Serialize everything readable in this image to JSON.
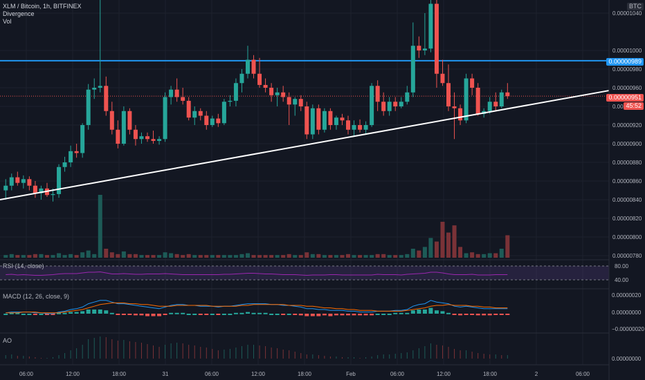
{
  "header": {
    "symbol": "XLM / Bitcoin, 1h, BITFINEX",
    "indicator_1": "Divergence",
    "indicator_2": "Vol"
  },
  "price_axis": {
    "currency": "BTC",
    "ticks": [
      "0.00001040",
      "0.00001000",
      "0.00000980",
      "0.00000960",
      "0.00000940",
      "0.00000920",
      "0.00000900",
      "0.00000880",
      "0.00000860",
      "0.00000840",
      "0.00000820",
      "0.00000800",
      "0.00000780"
    ],
    "tick_values": [
      1.04e-05,
      1e-05,
      9.8e-06,
      9.6e-06,
      9.4e-06,
      9.2e-06,
      9e-06,
      8.8e-06,
      8.6e-06,
      8.4e-06,
      8.2e-06,
      8e-06,
      7.8e-06
    ],
    "horizontal_line_label": "0.00000989",
    "horizontal_line_value": 9.89e-06,
    "last_price_label": "0.00000951",
    "last_price_value": 9.51e-06,
    "countdown": "45:52"
  },
  "rsi": {
    "label": "RSI (14, close)",
    "ticks": [
      "80.00",
      "40.00"
    ]
  },
  "macd": {
    "label": "MACD (12, 26, close, 9)",
    "ticks": [
      "0.00000020",
      "0.00000000",
      "−0.00000020"
    ]
  },
  "ao": {
    "label": "AO",
    "ticks": [
      "0.00000000"
    ]
  },
  "time_axis": {
    "labels": [
      "06:00",
      "12:00",
      "18:00",
      "31",
      "06:00",
      "12:00",
      "18:00",
      "Feb",
      "06:00",
      "12:00",
      "18:00",
      "2",
      "06:00"
    ]
  },
  "colors": {
    "up": "#26a69a",
    "down": "#ef5350",
    "hline": "#2196f3",
    "trendline": "#ffffff",
    "rsi": "#9c27b0",
    "macd": "#2196f3",
    "signal": "#ff6d00",
    "background": "#131722",
    "text": "#b2b5be"
  },
  "chart_data": {
    "type": "candlestick",
    "interval": "1h",
    "candles": [
      {
        "o": 8.5,
        "h": 8.62,
        "l": 8.4,
        "c": 8.55
      },
      {
        "o": 8.55,
        "h": 8.68,
        "l": 8.5,
        "c": 8.64
      },
      {
        "o": 8.64,
        "h": 8.7,
        "l": 8.55,
        "c": 8.58
      },
      {
        "o": 8.58,
        "h": 8.66,
        "l": 8.52,
        "c": 8.62
      },
      {
        "o": 8.62,
        "h": 8.65,
        "l": 8.5,
        "c": 8.55
      },
      {
        "o": 8.55,
        "h": 8.6,
        "l": 8.42,
        "c": 8.47
      },
      {
        "o": 8.47,
        "h": 8.55,
        "l": 8.4,
        "c": 8.52
      },
      {
        "o": 8.52,
        "h": 8.58,
        "l": 8.43,
        "c": 8.45
      },
      {
        "o": 8.45,
        "h": 8.52,
        "l": 8.38,
        "c": 8.46
      },
      {
        "o": 8.46,
        "h": 8.78,
        "l": 8.42,
        "c": 8.75
      },
      {
        "o": 8.75,
        "h": 8.86,
        "l": 8.7,
        "c": 8.8
      },
      {
        "o": 8.8,
        "h": 8.98,
        "l": 8.75,
        "c": 8.92
      },
      {
        "o": 8.92,
        "h": 9.0,
        "l": 8.85,
        "c": 8.9
      },
      {
        "o": 8.9,
        "h": 9.22,
        "l": 8.85,
        "c": 9.2
      },
      {
        "o": 9.2,
        "h": 9.64,
        "l": 9.15,
        "c": 9.58
      },
      {
        "o": 9.58,
        "h": 9.7,
        "l": 9.48,
        "c": 9.6
      },
      {
        "o": 9.6,
        "h": 10.6,
        "l": 9.55,
        "c": 9.62
      },
      {
        "o": 9.62,
        "h": 9.72,
        "l": 9.3,
        "c": 9.35
      },
      {
        "o": 9.35,
        "h": 9.45,
        "l": 9.1,
        "c": 9.15
      },
      {
        "o": 9.15,
        "h": 9.25,
        "l": 8.95,
        "c": 9.0
      },
      {
        "o": 9.0,
        "h": 9.4,
        "l": 8.98,
        "c": 9.35
      },
      {
        "o": 9.35,
        "h": 9.38,
        "l": 9.1,
        "c": 9.15
      },
      {
        "o": 9.15,
        "h": 9.2,
        "l": 8.98,
        "c": 9.05
      },
      {
        "o": 9.05,
        "h": 9.12,
        "l": 9.0,
        "c": 9.08
      },
      {
        "o": 9.08,
        "h": 9.12,
        "l": 9.02,
        "c": 9.05
      },
      {
        "o": 9.05,
        "h": 9.14,
        "l": 9.0,
        "c": 9.03
      },
      {
        "o": 9.03,
        "h": 9.08,
        "l": 8.99,
        "c": 9.05
      },
      {
        "o": 9.05,
        "h": 9.55,
        "l": 9.02,
        "c": 9.5
      },
      {
        "o": 9.5,
        "h": 9.62,
        "l": 9.42,
        "c": 9.58
      },
      {
        "o": 9.58,
        "h": 9.7,
        "l": 9.45,
        "c": 9.5
      },
      {
        "o": 9.5,
        "h": 9.6,
        "l": 9.42,
        "c": 9.46
      },
      {
        "o": 9.46,
        "h": 9.5,
        "l": 9.25,
        "c": 9.28
      },
      {
        "o": 9.28,
        "h": 9.4,
        "l": 9.2,
        "c": 9.35
      },
      {
        "o": 9.35,
        "h": 9.38,
        "l": 9.25,
        "c": 9.3
      },
      {
        "o": 9.3,
        "h": 9.35,
        "l": 9.15,
        "c": 9.2
      },
      {
        "o": 9.2,
        "h": 9.3,
        "l": 9.18,
        "c": 9.27
      },
      {
        "o": 9.27,
        "h": 9.32,
        "l": 9.18,
        "c": 9.22
      },
      {
        "o": 9.22,
        "h": 9.48,
        "l": 9.2,
        "c": 9.45
      },
      {
        "o": 9.45,
        "h": 9.52,
        "l": 9.4,
        "c": 9.46
      },
      {
        "o": 9.46,
        "h": 9.7,
        "l": 9.4,
        "c": 9.65
      },
      {
        "o": 9.65,
        "h": 9.8,
        "l": 9.55,
        "c": 9.75
      },
      {
        "o": 9.75,
        "h": 10.05,
        "l": 9.7,
        "c": 9.9
      },
      {
        "o": 9.9,
        "h": 9.95,
        "l": 9.7,
        "c": 9.75
      },
      {
        "o": 9.75,
        "h": 9.92,
        "l": 9.6,
        "c": 9.63
      },
      {
        "o": 9.63,
        "h": 9.7,
        "l": 9.55,
        "c": 9.6
      },
      {
        "o": 9.6,
        "h": 9.65,
        "l": 9.45,
        "c": 9.52
      },
      {
        "o": 9.52,
        "h": 9.6,
        "l": 9.4,
        "c": 9.55
      },
      {
        "o": 9.55,
        "h": 9.62,
        "l": 9.45,
        "c": 9.5
      },
      {
        "o": 9.5,
        "h": 9.55,
        "l": 9.2,
        "c": 9.42
      },
      {
        "o": 9.42,
        "h": 9.5,
        "l": 9.3,
        "c": 9.48
      },
      {
        "o": 9.48,
        "h": 9.52,
        "l": 9.35,
        "c": 9.4
      },
      {
        "o": 9.4,
        "h": 9.45,
        "l": 9.05,
        "c": 9.1
      },
      {
        "o": 9.1,
        "h": 9.42,
        "l": 9.05,
        "c": 9.38
      },
      {
        "o": 9.38,
        "h": 9.42,
        "l": 9.1,
        "c": 9.15
      },
      {
        "o": 9.15,
        "h": 9.38,
        "l": 9.12,
        "c": 9.35
      },
      {
        "o": 9.35,
        "h": 9.38,
        "l": 9.15,
        "c": 9.2
      },
      {
        "o": 9.2,
        "h": 9.3,
        "l": 9.15,
        "c": 9.28
      },
      {
        "o": 9.28,
        "h": 9.32,
        "l": 9.2,
        "c": 9.25
      },
      {
        "o": 9.25,
        "h": 9.3,
        "l": 9.1,
        "c": 9.15
      },
      {
        "o": 9.15,
        "h": 9.25,
        "l": 9.08,
        "c": 9.2
      },
      {
        "o": 9.2,
        "h": 9.26,
        "l": 9.12,
        "c": 9.15
      },
      {
        "o": 9.15,
        "h": 9.24,
        "l": 9.1,
        "c": 9.2
      },
      {
        "o": 9.2,
        "h": 9.65,
        "l": 9.18,
        "c": 9.62
      },
      {
        "o": 9.62,
        "h": 9.68,
        "l": 9.35,
        "c": 9.45
      },
      {
        "o": 9.45,
        "h": 9.55,
        "l": 9.3,
        "c": 9.35
      },
      {
        "o": 9.35,
        "h": 9.5,
        "l": 9.3,
        "c": 9.45
      },
      {
        "o": 9.45,
        "h": 9.5,
        "l": 9.35,
        "c": 9.4
      },
      {
        "o": 9.4,
        "h": 9.5,
        "l": 9.38,
        "c": 9.45
      },
      {
        "o": 9.45,
        "h": 9.62,
        "l": 9.42,
        "c": 9.55
      },
      {
        "o": 9.55,
        "h": 10.3,
        "l": 9.5,
        "c": 10.05
      },
      {
        "o": 10.05,
        "h": 10.15,
        "l": 9.92,
        "c": 10.0
      },
      {
        "o": 10.0,
        "h": 10.4,
        "l": 9.95,
        "c": 10.02
      },
      {
        "o": 10.02,
        "h": 10.55,
        "l": 9.98,
        "c": 10.5
      },
      {
        "o": 10.5,
        "h": 10.55,
        "l": 9.6,
        "c": 9.75
      },
      {
        "o": 9.75,
        "h": 9.9,
        "l": 9.62,
        "c": 9.65
      },
      {
        "o": 9.65,
        "h": 9.85,
        "l": 9.35,
        "c": 9.4
      },
      {
        "o": 9.4,
        "h": 9.55,
        "l": 9.05,
        "c": 9.38
      },
      {
        "o": 9.38,
        "h": 9.42,
        "l": 9.2,
        "c": 9.25
      },
      {
        "o": 9.25,
        "h": 9.75,
        "l": 9.22,
        "c": 9.7
      },
      {
        "o": 9.7,
        "h": 9.75,
        "l": 9.52,
        "c": 9.6
      },
      {
        "o": 9.6,
        "h": 9.65,
        "l": 9.3,
        "c": 9.32
      },
      {
        "o": 9.32,
        "h": 9.38,
        "l": 9.28,
        "c": 9.35
      },
      {
        "o": 9.35,
        "h": 9.5,
        "l": 9.32,
        "c": 9.45
      },
      {
        "o": 9.45,
        "h": 9.55,
        "l": 9.35,
        "c": 9.4
      },
      {
        "o": 9.4,
        "h": 9.58,
        "l": 9.38,
        "c": 9.55
      },
      {
        "o": 9.55,
        "h": 9.65,
        "l": 9.48,
        "c": 9.51
      }
    ],
    "volumes": [
      3,
      4,
      3,
      3,
      3,
      4,
      4,
      3,
      3,
      5,
      3,
      4,
      3,
      6,
      8,
      4,
      70,
      10,
      6,
      4,
      7,
      4,
      4,
      3,
      3,
      3,
      3,
      6,
      5,
      4,
      3,
      4,
      3,
      3,
      3,
      3,
      3,
      3,
      3,
      3,
      4,
      5,
      3,
      3,
      3,
      3,
      3,
      3,
      4,
      3,
      3,
      6,
      4,
      4,
      3,
      3,
      3,
      3,
      4,
      3,
      3,
      3,
      3,
      4,
      4,
      3,
      3,
      3,
      4,
      10,
      8,
      12,
      22,
      18,
      40,
      28,
      36,
      12,
      5,
      6,
      4,
      4,
      5,
      5,
      10,
      25
    ],
    "rsi": [
      55,
      56,
      54,
      55,
      54,
      53,
      53,
      54,
      55,
      57,
      58,
      58,
      58,
      60,
      62,
      62,
      63,
      60,
      57,
      57,
      58,
      57,
      56,
      56,
      57,
      57,
      57,
      58,
      57,
      56,
      55,
      55,
      55,
      55,
      55,
      55,
      55,
      56,
      56,
      57,
      58,
      59,
      59,
      58,
      57,
      57,
      56,
      55,
      55,
      55,
      54,
      53,
      54,
      54,
      54,
      55,
      55,
      54,
      54,
      54,
      54,
      54,
      54,
      56,
      55,
      55,
      55,
      54,
      56,
      57,
      58,
      59,
      62,
      62,
      60,
      57,
      55,
      55,
      55,
      56,
      54,
      54,
      54,
      55,
      55,
      55
    ],
    "macd": [
      0.01,
      0.02,
      0.02,
      0.02,
      0.02,
      0.01,
      0.01,
      0.0,
      0.0,
      0.02,
      0.03,
      0.05,
      0.06,
      0.08,
      0.12,
      0.14,
      0.16,
      0.16,
      0.14,
      0.12,
      0.12,
      0.11,
      0.1,
      0.09,
      0.08,
      0.07,
      0.06,
      0.08,
      0.1,
      0.11,
      0.11,
      0.1,
      0.1,
      0.09,
      0.09,
      0.09,
      0.08,
      0.09,
      0.09,
      0.1,
      0.11,
      0.12,
      0.12,
      0.12,
      0.12,
      0.11,
      0.11,
      0.1,
      0.1,
      0.09,
      0.08,
      0.06,
      0.06,
      0.05,
      0.05,
      0.04,
      0.04,
      0.04,
      0.03,
      0.03,
      0.02,
      0.02,
      0.02,
      0.03,
      0.03,
      0.03,
      0.04,
      0.04,
      0.05,
      0.09,
      0.11,
      0.12,
      0.16,
      0.14,
      0.13,
      0.12,
      0.09,
      0.08,
      0.09,
      0.08,
      0.07,
      0.06,
      0.06,
      0.06,
      0.06,
      0.06
    ],
    "macd_signal": [
      0.01,
      0.01,
      0.01,
      0.02,
      0.02,
      0.02,
      0.01,
      0.01,
      0.01,
      0.01,
      0.02,
      0.03,
      0.04,
      0.05,
      0.07,
      0.09,
      0.11,
      0.12,
      0.13,
      0.13,
      0.13,
      0.12,
      0.12,
      0.11,
      0.11,
      0.1,
      0.09,
      0.09,
      0.09,
      0.1,
      0.1,
      0.1,
      0.1,
      0.1,
      0.1,
      0.09,
      0.09,
      0.09,
      0.09,
      0.09,
      0.1,
      0.1,
      0.11,
      0.11,
      0.11,
      0.11,
      0.11,
      0.11,
      0.1,
      0.1,
      0.1,
      0.09,
      0.09,
      0.08,
      0.07,
      0.07,
      0.06,
      0.06,
      0.05,
      0.05,
      0.04,
      0.04,
      0.04,
      0.03,
      0.03,
      0.03,
      0.03,
      0.03,
      0.04,
      0.05,
      0.06,
      0.07,
      0.09,
      0.1,
      0.1,
      0.11,
      0.1,
      0.1,
      0.1,
      0.09,
      0.09,
      0.08,
      0.08,
      0.07,
      0.07,
      0.07
    ],
    "ao": [
      0.5,
      0.6,
      0.4,
      0.4,
      0.3,
      0.2,
      0.1,
      0.1,
      0.2,
      0.5,
      0.8,
      1.2,
      1.5,
      2.0,
      2.8,
      3.0,
      3.2,
      3.1,
      2.8,
      2.6,
      2.7,
      2.5,
      2.4,
      2.3,
      2.1,
      1.9,
      1.7,
      2.0,
      2.2,
      2.3,
      2.2,
      2.0,
      1.9,
      1.7,
      1.6,
      1.4,
      1.2,
      1.3,
      1.4,
      1.6,
      1.8,
      2.0,
      2.0,
      1.9,
      1.8,
      1.6,
      1.5,
      1.3,
      1.2,
      1.0,
      0.8,
      0.6,
      0.6,
      0.5,
      0.4,
      0.3,
      0.3,
      0.2,
      0.2,
      0.2,
      0.1,
      0.2,
      0.3,
      0.5,
      0.6,
      0.6,
      0.7,
      0.8,
      0.9,
      1.2,
      1.5,
      1.8,
      2.2,
      2.0,
      1.9,
      1.7,
      1.4,
      1.2,
      1.2,
      1.0,
      0.8,
      0.7,
      0.6,
      0.6,
      0.5,
      0.5
    ]
  }
}
